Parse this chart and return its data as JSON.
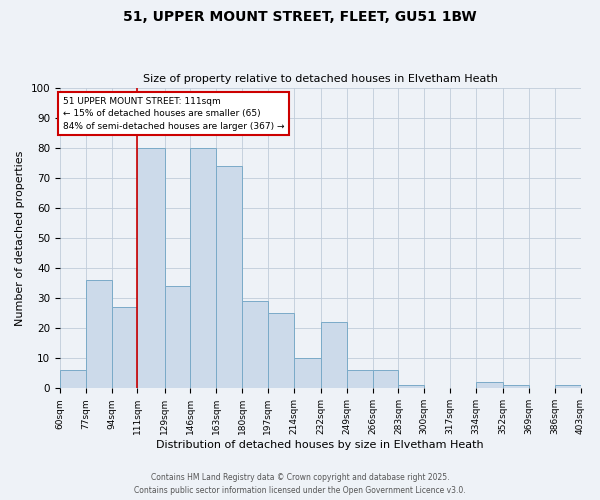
{
  "title": "51, UPPER MOUNT STREET, FLEET, GU51 1BW",
  "subtitle": "Size of property relative to detached houses in Elvetham Heath",
  "xlabel": "Distribution of detached houses by size in Elvetham Heath",
  "ylabel": "Number of detached properties",
  "bar_color": "#ccdaea",
  "bar_edge_color": "#7aaac8",
  "background_color": "#eef2f7",
  "bins": [
    60,
    77,
    94,
    111,
    129,
    146,
    163,
    180,
    197,
    214,
    232,
    249,
    266,
    283,
    300,
    317,
    334,
    352,
    369,
    386,
    403
  ],
  "counts": [
    6,
    36,
    27,
    80,
    34,
    80,
    74,
    29,
    25,
    10,
    22,
    6,
    6,
    1,
    0,
    0,
    2,
    1,
    0,
    1
  ],
  "tick_labels": [
    "60sqm",
    "77sqm",
    "94sqm",
    "111sqm",
    "129sqm",
    "146sqm",
    "163sqm",
    "180sqm",
    "197sqm",
    "214sqm",
    "232sqm",
    "249sqm",
    "266sqm",
    "283sqm",
    "300sqm",
    "317sqm",
    "334sqm",
    "352sqm",
    "369sqm",
    "386sqm",
    "403sqm"
  ],
  "vline_x": 111,
  "vline_color": "#cc0000",
  "annotation_line1": "51 UPPER MOUNT STREET: 111sqm",
  "annotation_line2": "← 15% of detached houses are smaller (65)",
  "annotation_line3": "84% of semi-detached houses are larger (367) →",
  "annotation_box_color": "#ffffff",
  "annotation_border_color": "#cc0000",
  "ylim": [
    0,
    100
  ],
  "yticks": [
    0,
    10,
    20,
    30,
    40,
    50,
    60,
    70,
    80,
    90,
    100
  ],
  "footnote1": "Contains HM Land Registry data © Crown copyright and database right 2025.",
  "footnote2": "Contains public sector information licensed under the Open Government Licence v3.0.",
  "grid_color": "#c0ccda"
}
